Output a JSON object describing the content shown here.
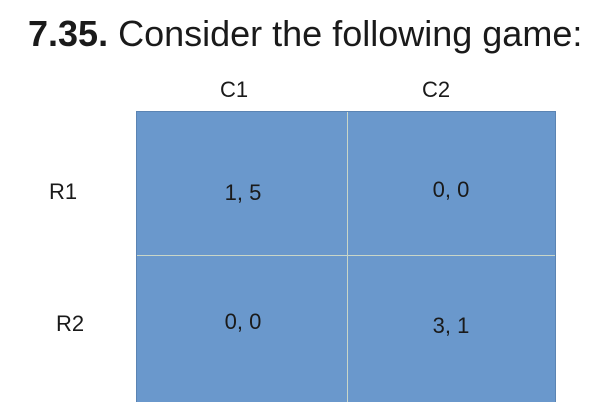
{
  "title": {
    "number": "7.35.",
    "text": " Consider the following game:"
  },
  "columns": [
    "C1",
    "C2"
  ],
  "rows": [
    "R1",
    "R2"
  ],
  "payoffs": [
    [
      "1, 5",
      "0, 0"
    ],
    [
      "0, 0",
      "3, 1"
    ]
  ],
  "colors": {
    "cell_fill": "#6a98cc",
    "grid_line": "#c9d6c8",
    "text": "#1a1a1a"
  }
}
